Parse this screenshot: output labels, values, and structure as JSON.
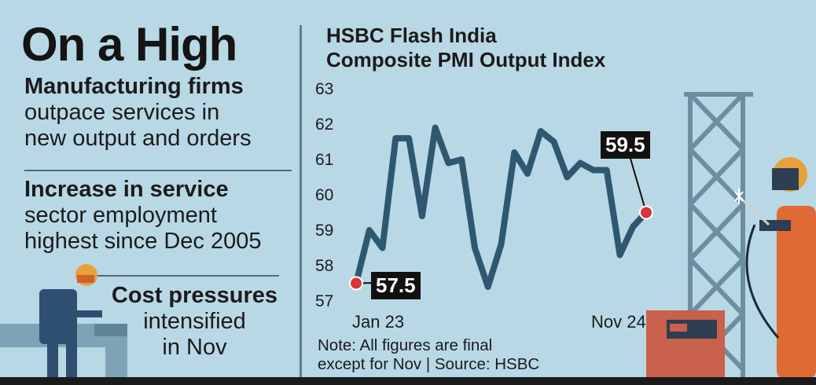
{
  "headline": "On a High",
  "points": [
    {
      "bold": "Manufacturing firms",
      "lines": [
        "outpace services in",
        "new output and orders"
      ]
    },
    {
      "bold": "Increase in service",
      "lines": [
        "sector employment",
        "highest since Dec 2005"
      ]
    },
    {
      "bold": "Cost pressures",
      "lines": [
        "intensified",
        "in Nov"
      ]
    }
  ],
  "chart_title_lines": [
    "HSBC Flash India",
    "Composite PMI Output Index"
  ],
  "note_lines": [
    "Note: All figures are final",
    "except for Nov | Source: HSBC"
  ],
  "colors": {
    "line": "#2e5870",
    "point": "#d8343a",
    "callout_bg": "#111111",
    "background": "#b9d8e6"
  },
  "chart_data": {
    "type": "line",
    "title": "HSBC Flash India Composite PMI Output Index",
    "x_labels_shown": [
      "Jan 23",
      "Nov 24"
    ],
    "ylim": [
      57,
      63
    ],
    "yticks": [
      57,
      58,
      59,
      60,
      61,
      62,
      63
    ],
    "series": [
      {
        "values": [
          57.5,
          59.0,
          58.5,
          61.6,
          61.6,
          59.4,
          61.9,
          60.9,
          61.0,
          58.5,
          57.4,
          58.6,
          61.2,
          60.6,
          61.8,
          61.5,
          60.5,
          60.9,
          60.7,
          60.7,
          58.3,
          59.1,
          59.5
        ]
      }
    ],
    "annotations": [
      {
        "label": "57.5",
        "index": 0
      },
      {
        "label": "59.5",
        "index": 22
      }
    ]
  }
}
